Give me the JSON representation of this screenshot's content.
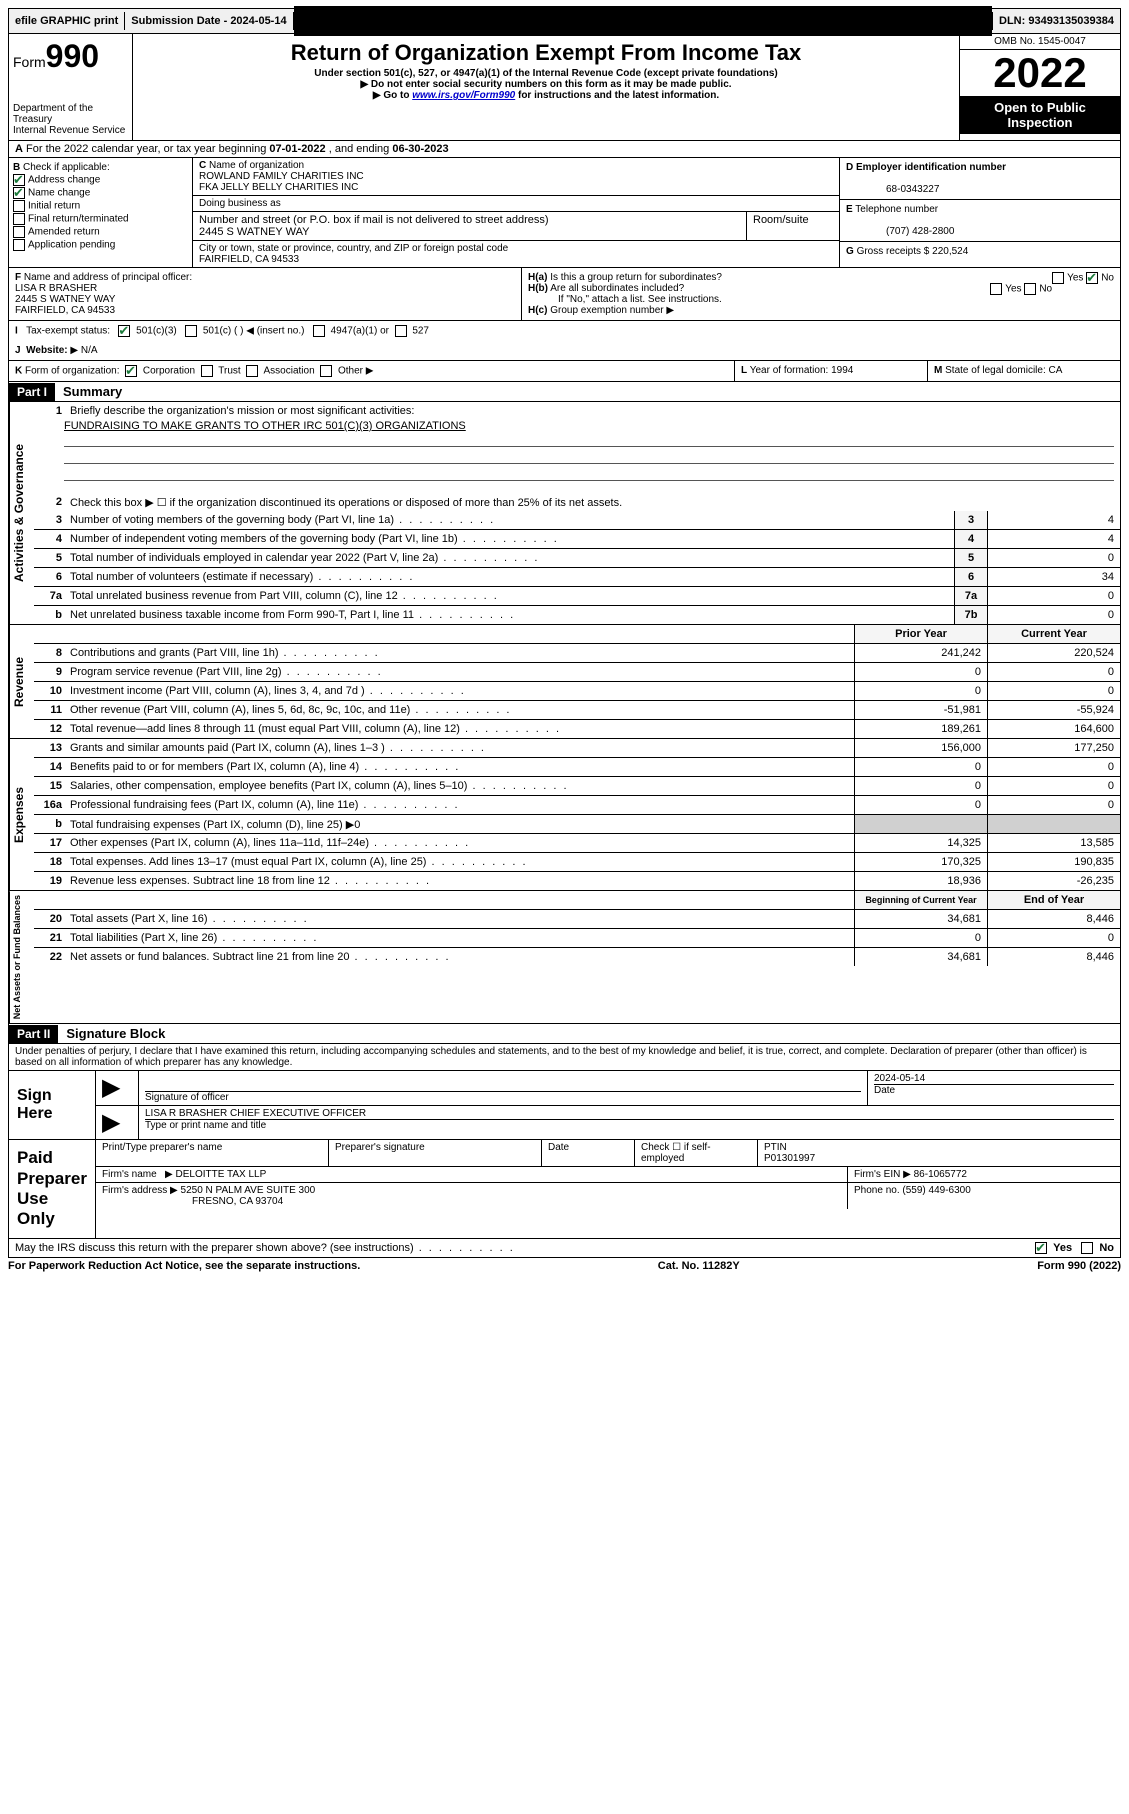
{
  "topbar": {
    "efile": "efile GRAPHIC print",
    "submission_label": "Submission Date - 2024-05-14",
    "dln_label": "DLN: 93493135039384"
  },
  "header": {
    "form_prefix": "Form",
    "form_num": "990",
    "dept": "Department of the Treasury",
    "irs": "Internal Revenue Service",
    "title": "Return of Organization Exempt From Income Tax",
    "sub1": "Under section 501(c), 527, or 4947(a)(1) of the Internal Revenue Code (except private foundations)",
    "sub2": "Do not enter social security numbers on this form as it may be made public.",
    "sub3_pre": "Go to ",
    "sub3_link": "www.irs.gov/Form990",
    "sub3_post": " for instructions and the latest information.",
    "omb": "OMB No. 1545-0047",
    "year": "2022",
    "inspection": "Open to Public Inspection"
  },
  "section_a": {
    "text_pre": "For the 2022 calendar year, or tax year beginning ",
    "begin": "07-01-2022",
    "mid": " , and ending ",
    "end": "06-30-2023"
  },
  "col_b": {
    "header": "Check if applicable:",
    "items": [
      {
        "label": "Address change",
        "checked": true
      },
      {
        "label": "Name change",
        "checked": true
      },
      {
        "label": "Initial return",
        "checked": false
      },
      {
        "label": "Final return/terminated",
        "checked": false
      },
      {
        "label": "Amended return",
        "checked": false
      },
      {
        "label": "Application pending",
        "checked": false
      }
    ]
  },
  "col_c": {
    "name_label": "Name of organization",
    "name1": "ROWLAND FAMILY CHARITIES INC",
    "name2": "FKA JELLY BELLY CHARITIES INC",
    "dba_label": "Doing business as",
    "addr_label": "Number and street (or P.O. box if mail is not delivered to street address)",
    "room_label": "Room/suite",
    "addr": "2445 S WATNEY WAY",
    "city_label": "City or town, state or province, country, and ZIP or foreign postal code",
    "city": "FAIRFIELD, CA  94533"
  },
  "col_de": {
    "d_label": "Employer identification number",
    "ein": "68-0343227",
    "e_label": "Telephone number",
    "phone": "(707) 428-2800",
    "g_label": "Gross receipts $",
    "gross": "220,524"
  },
  "row_f": {
    "label": "Name and address of principal officer:",
    "name": "LISA R BRASHER",
    "addr1": "2445 S WATNEY WAY",
    "addr2": "FAIRFIELD, CA  94533"
  },
  "row_h": {
    "ha_label": "Is this a group return for subordinates?",
    "hb_label": "Are all subordinates included?",
    "hb_note": "If \"No,\" attach a list. See instructions.",
    "hc_label": "Group exemption number"
  },
  "row_i": {
    "label": "Tax-exempt status:",
    "opt1": "501(c)(3)",
    "opt2": "501(c) (  )",
    "opt2_note": "(insert no.)",
    "opt3": "4947(a)(1) or",
    "opt4": "527"
  },
  "row_j": {
    "label": "Website:",
    "value": "N/A"
  },
  "row_k": {
    "label": "Form of organization:",
    "opts": [
      "Corporation",
      "Trust",
      "Association",
      "Other"
    ]
  },
  "row_lm": {
    "l_label": "Year of formation:",
    "l_val": "1994",
    "m_label": "State of legal domicile:",
    "m_val": "CA"
  },
  "part1": {
    "header": "Part I",
    "title": "Summary",
    "line1_label": "Briefly describe the organization's mission or most significant activities:",
    "line1_text": "FUNDRAISING TO MAKE GRANTS TO OTHER IRC 501(C)(3) ORGANIZATIONS",
    "line2": "Check this box ▶ ☐  if the organization discontinued its operations or disposed of more than 25% of its net assets.",
    "sections": {
      "gov": "Activities & Governance",
      "rev": "Revenue",
      "exp": "Expenses",
      "net": "Net Assets or Fund Balances"
    },
    "col_head_prior": "Prior Year",
    "col_head_current": "Current Year",
    "col_head_begin": "Beginning of Current Year",
    "col_head_end": "End of Year",
    "lines_gov": [
      {
        "n": "3",
        "d": "Number of voting members of the governing body (Part VI, line 1a)",
        "box": "3",
        "v": "4"
      },
      {
        "n": "4",
        "d": "Number of independent voting members of the governing body (Part VI, line 1b)",
        "box": "4",
        "v": "4"
      },
      {
        "n": "5",
        "d": "Total number of individuals employed in calendar year 2022 (Part V, line 2a)",
        "box": "5",
        "v": "0"
      },
      {
        "n": "6",
        "d": "Total number of volunteers (estimate if necessary)",
        "box": "6",
        "v": "34"
      },
      {
        "n": "7a",
        "d": "Total unrelated business revenue from Part VIII, column (C), line 12",
        "box": "7a",
        "v": "0"
      },
      {
        "n": "b",
        "d": "Net unrelated business taxable income from Form 990-T, Part I, line 11",
        "box": "7b",
        "v": "0"
      }
    ],
    "lines_rev": [
      {
        "n": "8",
        "d": "Contributions and grants (Part VIII, line 1h)",
        "p": "241,242",
        "c": "220,524"
      },
      {
        "n": "9",
        "d": "Program service revenue (Part VIII, line 2g)",
        "p": "0",
        "c": "0"
      },
      {
        "n": "10",
        "d": "Investment income (Part VIII, column (A), lines 3, 4, and 7d )",
        "p": "0",
        "c": "0"
      },
      {
        "n": "11",
        "d": "Other revenue (Part VIII, column (A), lines 5, 6d, 8c, 9c, 10c, and 11e)",
        "p": "-51,981",
        "c": "-55,924"
      },
      {
        "n": "12",
        "d": "Total revenue—add lines 8 through 11 (must equal Part VIII, column (A), line 12)",
        "p": "189,261",
        "c": "164,600"
      }
    ],
    "lines_exp": [
      {
        "n": "13",
        "d": "Grants and similar amounts paid (Part IX, column (A), lines 1–3 )",
        "p": "156,000",
        "c": "177,250"
      },
      {
        "n": "14",
        "d": "Benefits paid to or for members (Part IX, column (A), line 4)",
        "p": "0",
        "c": "0"
      },
      {
        "n": "15",
        "d": "Salaries, other compensation, employee benefits (Part IX, column (A), lines 5–10)",
        "p": "0",
        "c": "0"
      },
      {
        "n": "16a",
        "d": "Professional fundraising fees (Part IX, column (A), line 11e)",
        "p": "0",
        "c": "0"
      },
      {
        "n": "b",
        "d": "Total fundraising expenses (Part IX, column (D), line 25) ▶0",
        "shaded": true
      },
      {
        "n": "17",
        "d": "Other expenses (Part IX, column (A), lines 11a–11d, 11f–24e)",
        "p": "14,325",
        "c": "13,585"
      },
      {
        "n": "18",
        "d": "Total expenses. Add lines 13–17 (must equal Part IX, column (A), line 25)",
        "p": "170,325",
        "c": "190,835"
      },
      {
        "n": "19",
        "d": "Revenue less expenses. Subtract line 18 from line 12",
        "p": "18,936",
        "c": "-26,235"
      }
    ],
    "lines_net": [
      {
        "n": "20",
        "d": "Total assets (Part X, line 16)",
        "p": "34,681",
        "c": "8,446"
      },
      {
        "n": "21",
        "d": "Total liabilities (Part X, line 26)",
        "p": "0",
        "c": "0"
      },
      {
        "n": "22",
        "d": "Net assets or fund balances. Subtract line 21 from line 20",
        "p": "34,681",
        "c": "8,446"
      }
    ]
  },
  "part2": {
    "header": "Part II",
    "title": "Signature Block",
    "declaration": "Under penalties of perjury, I declare that I have examined this return, including accompanying schedules and statements, and to the best of my knowledge and belief, it is true, correct, and complete. Declaration of preparer (other than officer) is based on all information of which preparer has any knowledge."
  },
  "sign": {
    "label": "Sign Here",
    "sig_label": "Signature of officer",
    "date_label": "Date",
    "date_val": "2024-05-14",
    "name": "LISA R BRASHER  CHIEF EXECUTIVE OFFICER",
    "name_label": "Type or print name and title"
  },
  "paid": {
    "label": "Paid Preparer Use Only",
    "h1": "Print/Type preparer's name",
    "h2": "Preparer's signature",
    "h3": "Date",
    "h4_label": "Check ☐ if self-employed",
    "ptin_label": "PTIN",
    "ptin": "P01301997",
    "firm_name_label": "Firm's name",
    "firm_name": "DELOITTE TAX LLP",
    "firm_ein_label": "Firm's EIN",
    "firm_ein": "86-1065772",
    "firm_addr_label": "Firm's address",
    "firm_addr1": "5250 N PALM AVE SUITE 300",
    "firm_addr2": "FRESNO, CA  93704",
    "phone_label": "Phone no.",
    "phone": "(559) 449-6300"
  },
  "bottom": {
    "q": "May the IRS discuss this return with the preparer shown above? (see instructions)",
    "yes": "Yes",
    "no": "No"
  },
  "footer": {
    "left": "For Paperwork Reduction Act Notice, see the separate instructions.",
    "mid": "Cat. No. 11282Y",
    "right": "Form 990 (2022)"
  }
}
